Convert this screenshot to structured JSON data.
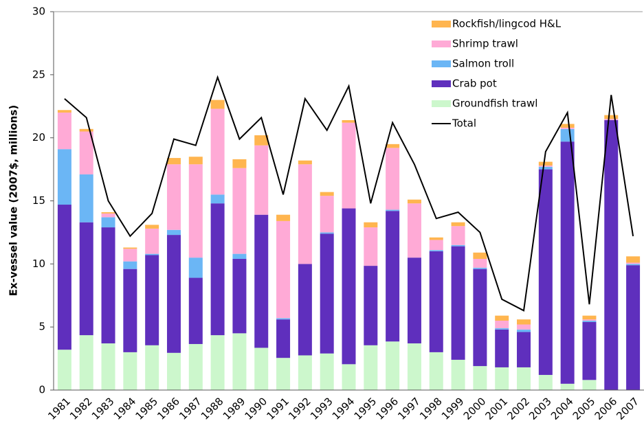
{
  "chart_data": {
    "type": "bar",
    "stacked": true,
    "y_label": "Ex-vessel value (2007$, millions)",
    "categories": [
      "1981",
      "1982",
      "1983",
      "1984",
      "1985",
      "1986",
      "1987",
      "1988",
      "1989",
      "1990",
      "1991",
      "1992",
      "1993",
      "1994",
      "1995",
      "1996",
      "1997",
      "1998",
      "1999",
      "2000",
      "2001",
      "2002",
      "2003",
      "2004",
      "2005",
      "2006",
      "2007"
    ],
    "series": [
      {
        "name": "Groundfish trawl",
        "color": "#ccf7cc",
        "values": [
          3.2,
          4.35,
          3.7,
          3.0,
          3.55,
          2.95,
          3.65,
          4.35,
          4.5,
          3.35,
          2.55,
          2.75,
          2.9,
          2.05,
          3.55,
          3.85,
          3.7,
          3.0,
          2.4,
          1.9,
          1.8,
          1.8,
          1.2,
          0.5,
          0.8,
          0,
          0
        ]
      },
      {
        "name": "Crab pot",
        "color": "#5f2fbd",
        "values": [
          11.5,
          8.95,
          9.2,
          6.6,
          7.15,
          9.35,
          5.25,
          10.45,
          5.9,
          10.55,
          3.05,
          7.25,
          9.5,
          12.35,
          6.3,
          10.35,
          6.8,
          8.0,
          9.0,
          7.7,
          3.0,
          2.8,
          16.3,
          19.2,
          4.6,
          21.4,
          9.9
        ]
      },
      {
        "name": "Salmon troll",
        "color": "#6bb6f5",
        "values": [
          4.4,
          3.8,
          0.8,
          0.6,
          0.1,
          0.4,
          1.6,
          0.7,
          0.4,
          0,
          0.1,
          0,
          0.1,
          0,
          0,
          0.1,
          0,
          0.1,
          0.1,
          0.1,
          0.1,
          0.2,
          0.2,
          1.0,
          0.1,
          0,
          0.1
        ]
      },
      {
        "name": "Shrimp trawl",
        "color": "#ffaad6",
        "values": [
          2.9,
          3.4,
          0.3,
          1.0,
          2.0,
          5.2,
          7.4,
          6.8,
          6.8,
          5.5,
          7.7,
          7.9,
          2.9,
          6.8,
          3.05,
          4.9,
          4.3,
          0.8,
          1.5,
          0.7,
          0.6,
          0.4,
          0.1,
          0.1,
          0.1,
          0.1,
          0.1
        ]
      },
      {
        "name": "Rockfish/lingcod H&L",
        "color": "#ffb54f",
        "values": [
          0.2,
          0.2,
          0.1,
          0.1,
          0.3,
          0.5,
          0.6,
          0.7,
          0.7,
          0.8,
          0.5,
          0.3,
          0.3,
          0.2,
          0.4,
          0.3,
          0.3,
          0.2,
          0.3,
          0.5,
          0.4,
          0.4,
          0.3,
          0.3,
          0.3,
          0.3,
          0.5
        ]
      },
      {
        "name": "Total",
        "color": "#000000",
        "type": "line",
        "values": [
          23.1,
          21.6,
          15.0,
          12.2,
          14.0,
          19.9,
          19.4,
          24.8,
          19.9,
          21.6,
          15.5,
          23.1,
          20.6,
          24.1,
          14.8,
          21.2,
          17.9,
          13.6,
          14.1,
          12.5,
          7.2,
          6.3,
          18.9,
          22.0,
          6.8,
          23.4,
          12.2
        ]
      }
    ],
    "ylim": [
      0,
      30
    ],
    "yticks": [
      0,
      5,
      10,
      15,
      20,
      25,
      30
    ],
    "grid": false,
    "legend": "upper right"
  }
}
